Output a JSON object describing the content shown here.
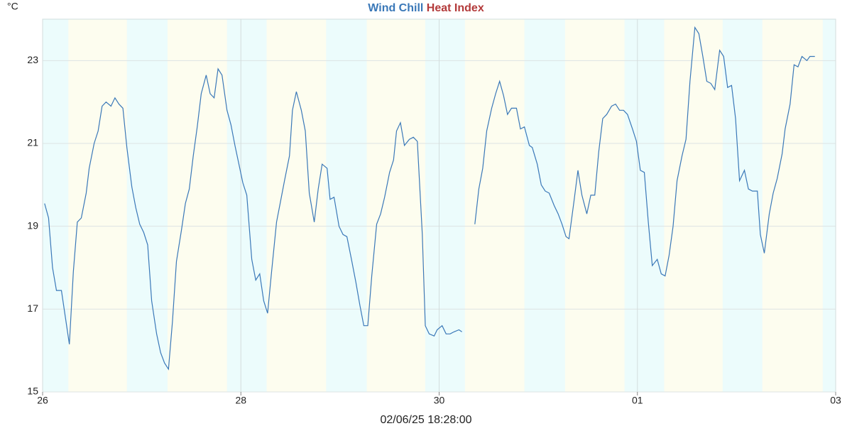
{
  "chart_data": {
    "type": "line",
    "y_unit": "°C",
    "x_label": "02/06/25 18:28:00",
    "xlim": [
      0,
      8
    ],
    "xticks": [
      {
        "value": 0,
        "label": "26"
      },
      {
        "value": 2,
        "label": "28"
      },
      {
        "value": 4,
        "label": "30"
      },
      {
        "value": 6,
        "label": "01"
      },
      {
        "value": 8,
        "label": "03"
      }
    ],
    "ylim": [
      15,
      24
    ],
    "yticks": [
      15,
      17,
      19,
      21,
      23
    ],
    "grid": true,
    "shading": {
      "day_color": "#fdfdef",
      "night_color": "#ecfcfc",
      "night": [
        [
          0,
          0.26
        ],
        [
          0.85,
          1.26
        ],
        [
          1.86,
          2.26
        ],
        [
          2.86,
          3.27
        ],
        [
          3.86,
          4.26
        ],
        [
          4.86,
          5.27
        ],
        [
          5.87,
          6.27
        ],
        [
          6.86,
          7.26
        ],
        [
          7.87,
          8
        ]
      ]
    },
    "x": [
      0.02,
      0.06,
      0.1,
      0.14,
      0.19,
      0.23,
      0.27,
      0.31,
      0.35,
      0.39,
      0.44,
      0.47,
      0.52,
      0.56,
      0.6,
      0.64,
      0.69,
      0.73,
      0.77,
      0.81,
      0.85,
      0.9,
      0.94,
      0.98,
      1.02,
      1.06,
      1.1,
      1.15,
      1.19,
      1.23,
      1.27,
      1.31,
      1.35,
      1.4,
      1.44,
      1.48,
      1.52,
      1.56,
      1.6,
      1.65,
      1.69,
      1.73,
      1.77,
      1.81,
      1.86,
      1.9,
      1.94,
      1.98,
      2.02,
      2.06,
      2.11,
      2.15,
      2.19,
      2.23,
      2.27,
      2.31,
      2.36,
      2.4,
      2.44,
      2.49,
      2.52,
      2.56,
      2.61,
      2.65,
      2.69,
      2.74,
      2.78,
      2.82,
      2.87,
      2.9,
      2.94,
      2.99,
      3.03,
      3.07,
      3.12,
      3.16,
      3.2,
      3.24,
      3.28,
      3.32,
      3.37,
      3.41,
      3.45,
      3.5,
      3.54,
      3.57,
      3.61,
      3.65,
      3.7,
      3.74,
      3.78,
      3.83,
      3.86,
      3.9,
      3.95,
      3.98,
      4.03,
      4.07,
      4.11,
      4.15,
      4.2,
      4.23,
      4.3,
      4.36,
      4.4,
      4.44,
      4.48,
      4.53,
      4.57,
      4.61,
      4.65,
      4.69,
      4.73,
      4.78,
      4.82,
      4.86,
      4.91,
      4.94,
      4.99,
      5.03,
      5.07,
      5.11,
      5.16,
      5.2,
      5.24,
      5.28,
      5.31,
      5.36,
      5.4,
      5.44,
      5.49,
      5.53,
      5.57,
      5.61,
      5.65,
      5.69,
      5.74,
      5.78,
      5.82,
      5.86,
      5.9,
      5.95,
      5.99,
      6.03,
      6.07,
      6.11,
      6.15,
      6.2,
      6.24,
      6.28,
      6.32,
      6.36,
      6.4,
      6.45,
      6.49,
      6.53,
      6.58,
      6.62,
      6.66,
      6.7,
      6.74,
      6.78,
      6.83,
      6.87,
      6.91,
      6.95,
      6.99,
      7.03,
      7.08,
      7.12,
      7.16,
      7.21,
      7.24,
      7.28,
      7.33,
      7.37,
      7.41,
      7.46,
      7.49,
      7.54,
      7.58,
      7.62,
      7.66,
      7.71,
      7.74,
      7.79
    ],
    "series": [
      {
        "name": "Wind Chill",
        "color": "#3a78b8",
        "values": [
          19.55,
          19.2,
          18.0,
          17.45,
          17.45,
          16.8,
          16.15,
          17.9,
          19.1,
          19.2,
          19.8,
          20.4,
          21.0,
          21.3,
          21.9,
          22.0,
          21.9,
          22.1,
          21.95,
          21.85,
          20.9,
          19.95,
          19.45,
          19.05,
          18.85,
          18.55,
          17.2,
          16.4,
          15.95,
          15.7,
          15.55,
          16.7,
          18.15,
          18.9,
          19.55,
          19.9,
          20.7,
          21.4,
          22.2,
          22.65,
          22.2,
          22.1,
          22.8,
          22.65,
          21.8,
          21.45,
          20.95,
          20.5,
          20.05,
          19.75,
          18.2,
          17.7,
          17.85,
          17.2,
          16.9,
          17.9,
          19.1,
          19.6,
          20.1,
          20.7,
          21.8,
          22.25,
          21.8,
          21.3,
          19.8,
          19.1,
          19.9,
          20.5,
          20.4,
          19.65,
          19.7,
          19.0,
          18.8,
          18.75,
          18.15,
          17.65,
          17.1,
          16.6,
          16.6,
          17.8,
          19.05,
          19.3,
          19.7,
          20.3,
          20.6,
          21.3,
          21.5,
          20.95,
          21.1,
          21.15,
          21.05,
          18.8,
          16.6,
          16.4,
          16.35,
          16.5,
          16.6,
          16.4,
          16.4,
          16.45,
          16.5,
          16.45,
          null,
          19.05,
          19.9,
          20.4,
          21.3,
          21.85,
          22.2,
          22.5,
          22.15,
          21.7,
          21.85,
          21.85,
          21.35,
          21.4,
          20.95,
          20.9,
          20.5,
          20.0,
          19.85,
          19.8,
          19.5,
          19.3,
          19.05,
          18.75,
          18.7,
          19.6,
          20.35,
          19.75,
          19.3,
          19.75,
          19.75,
          20.8,
          21.6,
          21.7,
          21.9,
          21.95,
          21.8,
          21.8,
          21.7,
          21.35,
          21.05,
          20.35,
          20.3,
          19.1,
          18.05,
          18.2,
          17.85,
          17.8,
          18.3,
          19.0,
          20.1,
          20.7,
          21.1,
          22.5,
          23.8,
          23.65,
          23.1,
          22.5,
          22.45,
          22.3,
          23.25,
          23.1,
          22.35,
          22.4,
          21.6,
          20.1,
          20.35,
          19.9,
          19.85,
          19.85,
          18.8,
          18.35,
          19.3,
          19.8,
          20.15,
          20.75,
          21.35,
          21.95,
          22.9,
          22.85,
          23.1,
          23.0,
          23.1,
          23.1
        ]
      },
      {
        "name": "Heat Index",
        "color": "#b33a3a",
        "values": [
          null,
          null,
          null,
          null,
          null,
          null,
          null,
          null,
          null,
          null,
          null,
          null,
          null,
          null,
          null,
          null,
          null,
          null,
          null,
          null,
          null,
          null,
          null,
          null,
          null,
          null,
          null,
          null,
          null,
          null,
          null,
          null,
          null,
          null,
          null,
          null,
          null,
          null,
          null,
          null,
          null,
          null,
          null,
          null,
          null,
          null,
          null,
          null,
          null,
          null,
          null,
          null,
          null,
          null,
          null,
          null,
          null,
          null,
          null,
          null,
          null,
          null,
          null,
          null,
          null,
          null,
          null,
          null,
          null,
          null,
          null,
          null,
          null,
          null,
          null,
          null,
          null,
          null,
          null,
          null,
          null,
          null,
          null,
          null,
          null,
          null,
          null,
          null,
          null,
          null,
          null,
          null,
          null,
          null,
          null,
          null,
          null,
          null,
          null,
          null,
          null,
          null,
          null,
          null,
          null,
          null,
          null,
          null,
          null,
          null,
          null,
          null,
          null,
          null,
          null,
          null,
          null,
          null,
          null,
          null,
          null,
          null,
          null,
          null,
          null,
          null,
          null,
          null,
          null,
          null,
          null,
          null,
          null,
          null,
          null,
          null,
          null,
          null,
          null,
          null,
          null,
          null,
          null,
          null,
          null,
          null,
          null,
          null,
          null,
          null,
          null,
          null,
          null,
          null,
          null,
          null,
          null,
          null,
          null,
          null,
          null,
          null,
          null,
          null,
          null,
          null,
          null,
          null,
          null,
          null,
          null,
          null,
          null,
          null,
          null,
          null,
          null,
          null,
          null,
          null,
          null,
          null,
          null,
          null,
          null,
          null
        ]
      }
    ]
  }
}
